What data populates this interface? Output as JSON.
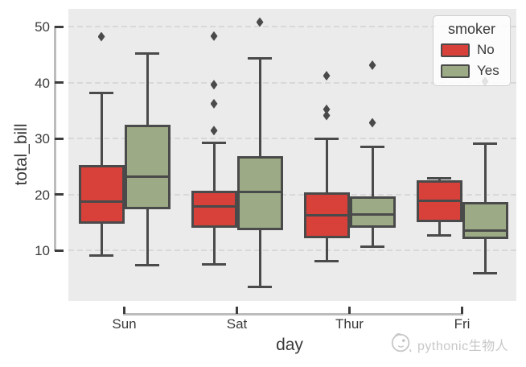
{
  "figure": {
    "background": "#ffffff"
  },
  "axes": {
    "background": "#ebebeb",
    "grid_color": "#d8d8d8",
    "spine_color": "#bcbcbc",
    "tick_color": "#3d3d3d",
    "tick_label_color": "#3a3a3a",
    "axis_label_color": "#3a3a3a",
    "xlabel": "day",
    "ylabel": "total_bill",
    "yticks": [
      10,
      20,
      30,
      40,
      50
    ]
  },
  "chart_data": {
    "type": "grouped_boxplot",
    "title": "",
    "xlabel": "day",
    "ylabel": "total_bill",
    "categories": [
      "Sun",
      "Sat",
      "Thur",
      "Fri"
    ],
    "legend_title": "smoker",
    "legend_position": "upper right",
    "grid": "horizontal dashed",
    "ylim": [
      1.0,
      53.3
    ],
    "box_edge_color": "#4a4a4a",
    "series": [
      {
        "name": "No",
        "color": "#d8403a",
        "boxes": [
          {
            "whislo": 9.0,
            "q1": 14.8,
            "med": 18.7,
            "q3": 25.2,
            "whishi": 38.1,
            "fliers": [
              48.2
            ]
          },
          {
            "whislo": 7.5,
            "q1": 14.0,
            "med": 17.8,
            "q3": 20.7,
            "whishi": 29.2,
            "fliers": [
              48.3,
              39.6,
              36.2,
              31.4
            ]
          },
          {
            "whislo": 8.0,
            "q1": 12.2,
            "med": 16.3,
            "q3": 20.3,
            "whishi": 29.9,
            "fliers": [
              41.2,
              35.2,
              34.1
            ]
          },
          {
            "whislo": 12.6,
            "q1": 15.0,
            "med": 18.9,
            "q3": 22.5,
            "whishi": 22.9,
            "fliers": []
          }
        ]
      },
      {
        "name": "Yes",
        "color": "#9cab86",
        "boxes": [
          {
            "whislo": 7.3,
            "q1": 17.4,
            "med": 23.2,
            "q3": 32.5,
            "whishi": 45.2,
            "fliers": []
          },
          {
            "whislo": 3.4,
            "q1": 13.6,
            "med": 20.5,
            "q3": 26.8,
            "whishi": 44.3,
            "fliers": [
              50.8
            ]
          },
          {
            "whislo": 10.7,
            "q1": 14.0,
            "med": 16.4,
            "q3": 19.6,
            "whishi": 28.5,
            "fliers": [
              43.1,
              32.8
            ]
          },
          {
            "whislo": 5.9,
            "q1": 12.0,
            "med": 13.5,
            "q3": 18.7,
            "whishi": 29.0,
            "fliers": [
              40.2
            ]
          }
        ]
      }
    ]
  },
  "legend": {
    "title": "smoker",
    "items": [
      {
        "label": "No",
        "color": "#d8403a"
      },
      {
        "label": "Yes",
        "color": "#9cab86"
      }
    ]
  },
  "watermark": {
    "text": "pythonic生物人",
    "color": "#c8c8c8",
    "icon": "panda-logo-icon"
  }
}
